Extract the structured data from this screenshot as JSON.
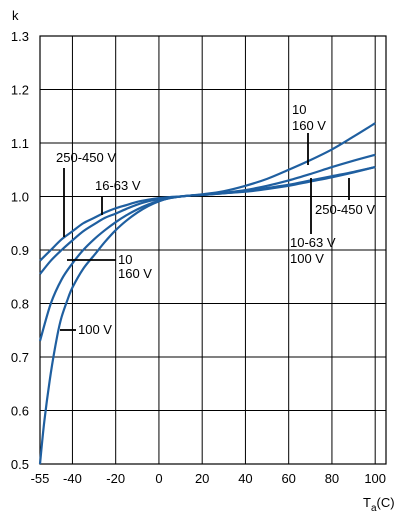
{
  "chart_data": {
    "type": "line",
    "title": "",
    "ylabel": "k",
    "xlabel": "T",
    "xlabel_sub": "a",
    "xlabel_unit": "(C)",
    "xlim": [
      -55,
      105
    ],
    "ylim": [
      0.5,
      1.3
    ],
    "x_ticks": [
      -55,
      -40,
      -20,
      0,
      20,
      40,
      60,
      80,
      100
    ],
    "x_tick_labels": [
      "-55",
      "-40",
      "-20",
      "0",
      "20",
      "40",
      "60",
      "80",
      "100"
    ],
    "y_ticks": [
      0.5,
      0.6,
      0.7,
      0.8,
      0.9,
      1.0,
      1.1,
      1.2,
      1.3
    ],
    "y_tick_labels": [
      "0.5",
      "0.6",
      "0.7",
      "0.8",
      "0.9",
      "1.0",
      "1.1",
      "1.2",
      "1.3"
    ],
    "grid": true,
    "line_color": "#1f5fa0",
    "series": [
      {
        "key": "s250",
        "x": [
          -55,
          -50,
          -45,
          -40,
          -35,
          -30,
          -25,
          -20,
          -15,
          -10,
          -5,
          0,
          5,
          10,
          15,
          20,
          30,
          40,
          50,
          60,
          70,
          80,
          90,
          100
        ],
        "y": [
          0.88,
          0.9,
          0.92,
          0.935,
          0.95,
          0.96,
          0.97,
          0.978,
          0.984,
          0.99,
          0.994,
          0.997,
          0.999,
          1.0,
          1.002,
          1.003,
          1.006,
          1.009,
          1.014,
          1.02,
          1.028,
          1.036,
          1.045,
          1.055
        ]
      },
      {
        "key": "s1663",
        "x": [
          -55,
          -50,
          -45,
          -40,
          -35,
          -30,
          -25,
          -20,
          -15,
          -10,
          -5,
          0,
          5,
          10,
          15,
          20,
          30,
          40,
          50,
          60,
          70,
          80,
          90,
          100
        ],
        "y": [
          0.855,
          0.88,
          0.9,
          0.918,
          0.935,
          0.948,
          0.96,
          0.968,
          0.977,
          0.985,
          0.991,
          0.995,
          0.998,
          1.0,
          1.002,
          1.003,
          1.007,
          1.012,
          1.02,
          1.03,
          1.042,
          1.055,
          1.067,
          1.078
        ]
      },
      {
        "key": "s10160",
        "x": [
          -55,
          -50,
          -45,
          -40,
          -35,
          -30,
          -25,
          -20,
          -15,
          -10,
          -5,
          0,
          5,
          10,
          15,
          20,
          30,
          40,
          50,
          60,
          70,
          80,
          90,
          100
        ],
        "y": [
          0.73,
          0.8,
          0.845,
          0.875,
          0.9,
          0.92,
          0.937,
          0.952,
          0.965,
          0.976,
          0.985,
          0.992,
          0.997,
          1.0,
          1.002,
          1.004,
          1.01,
          1.02,
          1.033,
          1.05,
          1.068,
          1.088,
          1.112,
          1.137
        ]
      },
      {
        "key": "s100",
        "x": [
          -55,
          -53,
          -50,
          -47,
          -45,
          -42,
          -40,
          -35,
          -30,
          -25,
          -20,
          -15,
          -10,
          -5,
          0,
          5,
          10,
          15,
          20,
          30,
          40,
          50,
          60,
          70,
          80,
          90,
          100
        ],
        "y": [
          0.5,
          0.58,
          0.67,
          0.74,
          0.775,
          0.81,
          0.83,
          0.865,
          0.89,
          0.915,
          0.937,
          0.955,
          0.97,
          0.982,
          0.991,
          0.997,
          1.0,
          1.002,
          1.003,
          1.006,
          1.01,
          1.016,
          1.022,
          1.03,
          1.038,
          1.046,
          1.055
        ]
      }
    ],
    "annotations": [
      {
        "key": "a_250_left",
        "lines": [
          "250-450 V"
        ]
      },
      {
        "key": "a_1663",
        "lines": [
          "16-63 V"
        ]
      },
      {
        "key": "a_10_160_left",
        "lines": [
          "10",
          "160 V"
        ]
      },
      {
        "key": "a_100_left",
        "lines": [
          "100 V"
        ]
      },
      {
        "key": "a_10_160_right",
        "lines": [
          "10",
          "160 V"
        ]
      },
      {
        "key": "a_250_right",
        "lines": [
          "250-450 V"
        ]
      },
      {
        "key": "a_1063_100_right",
        "lines": [
          "10-63 V",
          "100 V"
        ]
      }
    ]
  }
}
